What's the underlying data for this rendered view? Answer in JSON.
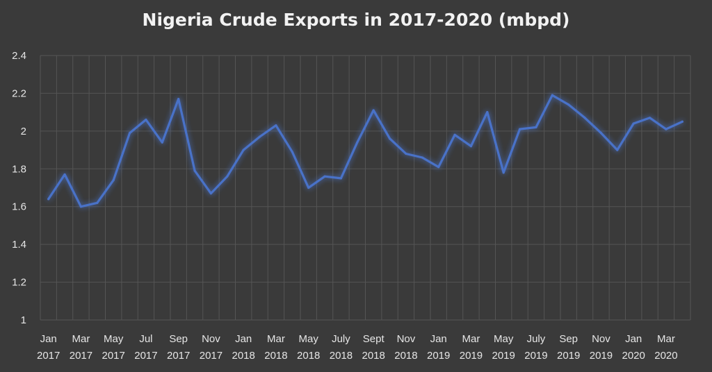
{
  "chart_data": {
    "type": "line",
    "title": "Nigeria Crude Exports in 2017-2020 (mbpd)",
    "xlabel": "",
    "ylabel": "",
    "ylim": [
      1,
      2.4
    ],
    "yticks": [
      "1",
      "1.2",
      "1.4",
      "1.6",
      "1.8",
      "2",
      "2.2",
      "2.4"
    ],
    "grid": true,
    "legend": "none",
    "line_color": "#4a72c8",
    "x": [
      "Jan 2017",
      "Feb 2017",
      "Mar 2017",
      "Apr 2017",
      "May 2017",
      "Jun 2017",
      "Jul 2017",
      "Aug 2017",
      "Sep 2017",
      "Oct 2017",
      "Nov 2017",
      "Dec 2017",
      "Jan 2018",
      "Feb 2018",
      "Mar 2018",
      "Apr 2018",
      "May 2018",
      "Jun 2018",
      "July 2018",
      "Aug 2018",
      "Sept 2018",
      "Oct 2018",
      "Nov 2018",
      "Dec 2018",
      "Jan 2019",
      "Feb 2019",
      "Mar 2019",
      "Apr 2019",
      "May 2019",
      "Jun 2019",
      "July 2019",
      "Aug 2019",
      "Sep 2019",
      "Oct 2019",
      "Nov 2019",
      "Dec 2019",
      "Jan 2020",
      "Feb 2020",
      "Mar 2020",
      "Apr 2020"
    ],
    "xtick_labels": [
      {
        "index": 0,
        "month": "Jan",
        "year": "2017"
      },
      {
        "index": 2,
        "month": "Mar",
        "year": "2017"
      },
      {
        "index": 4,
        "month": "May",
        "year": "2017"
      },
      {
        "index": 6,
        "month": "Jul",
        "year": "2017"
      },
      {
        "index": 8,
        "month": "Sep",
        "year": "2017"
      },
      {
        "index": 10,
        "month": "Nov",
        "year": "2017"
      },
      {
        "index": 12,
        "month": "Jan",
        "year": "2018"
      },
      {
        "index": 14,
        "month": "Mar",
        "year": "2018"
      },
      {
        "index": 16,
        "month": "May",
        "year": "2018"
      },
      {
        "index": 18,
        "month": "July",
        "year": "2018"
      },
      {
        "index": 20,
        "month": "Sept",
        "year": "2018"
      },
      {
        "index": 22,
        "month": "Nov",
        "year": "2018"
      },
      {
        "index": 24,
        "month": "Jan",
        "year": "2019"
      },
      {
        "index": 26,
        "month": "Mar",
        "year": "2019"
      },
      {
        "index": 28,
        "month": "May",
        "year": "2019"
      },
      {
        "index": 30,
        "month": "July",
        "year": "2019"
      },
      {
        "index": 32,
        "month": "Sep",
        "year": "2019"
      },
      {
        "index": 34,
        "month": "Nov",
        "year": "2019"
      },
      {
        "index": 36,
        "month": "Jan",
        "year": "2020"
      },
      {
        "index": 38,
        "month": "Mar",
        "year": "2020"
      }
    ],
    "series": [
      {
        "values": [
          1.64,
          1.77,
          1.6,
          1.62,
          1.74,
          1.99,
          2.06,
          1.94,
          2.17,
          1.79,
          1.67,
          1.76,
          1.9,
          1.97,
          2.03,
          1.89,
          1.7,
          1.76,
          1.75,
          1.94,
          2.11,
          1.96,
          1.88,
          1.86,
          1.81,
          1.98,
          1.92,
          2.1,
          1.78,
          2.01,
          2.02,
          2.19,
          2.14,
          2.07,
          1.99,
          1.9,
          2.04,
          2.07,
          2.01,
          2.05
        ]
      }
    ]
  }
}
